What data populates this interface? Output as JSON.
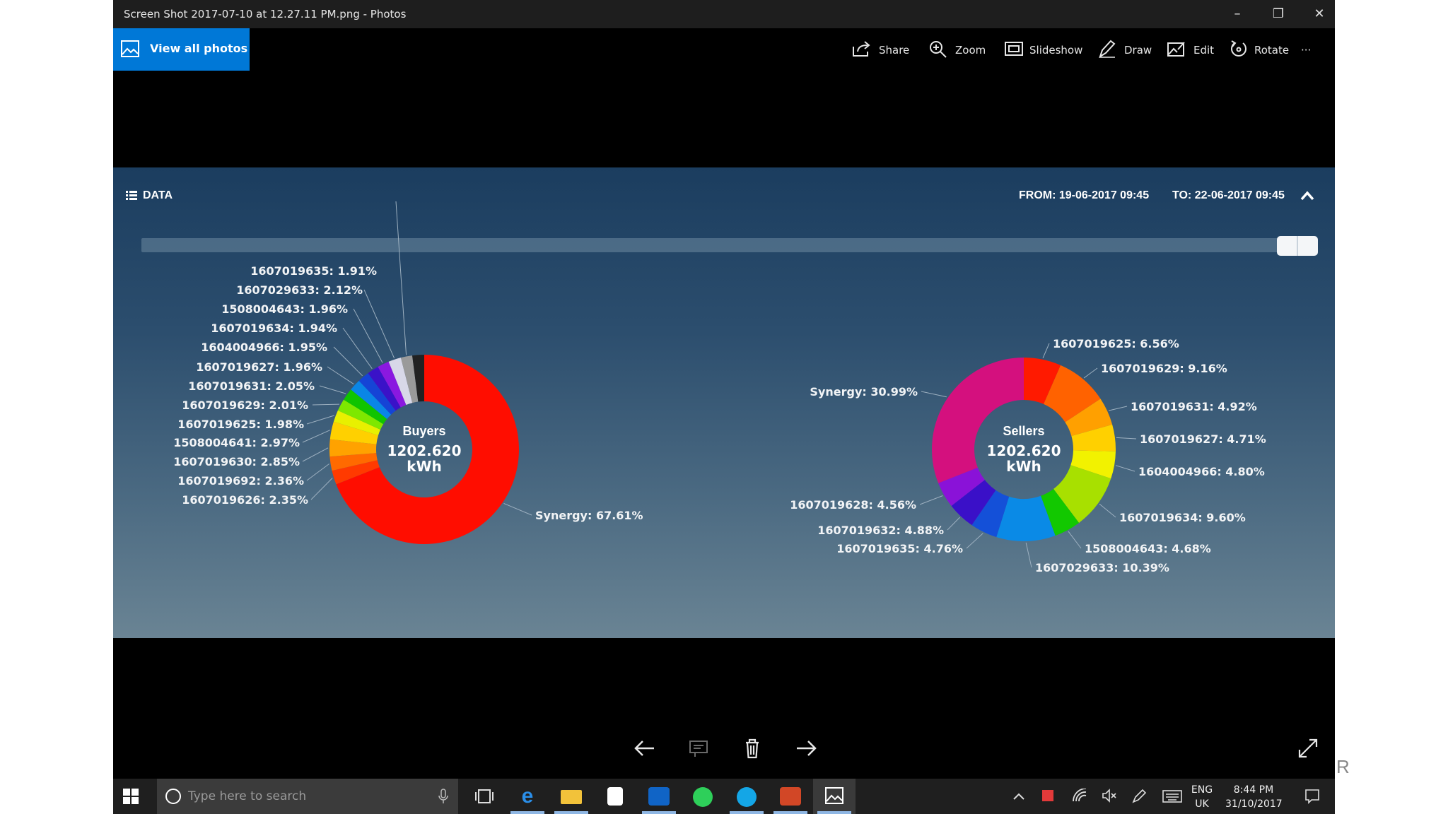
{
  "window": {
    "title": "Screen Shot 2017-07-10 at 12.27.11 PM.png - Photos",
    "minimize_glyph": "–",
    "restore_glyph": "❐",
    "close_glyph": "✕"
  },
  "toolbar": {
    "view_all": "View all photos",
    "share": "Share",
    "zoom": "Zoom",
    "slideshow": "Slideshow",
    "draw": "Draw",
    "edit": "Edit",
    "rotate": "Rotate",
    "more": "···"
  },
  "panel": {
    "header": "DATA",
    "from": "FROM: 19-06-2017 09:45",
    "to": "TO: 22-06-2017 09:45"
  },
  "chart_data": [
    {
      "type": "pie",
      "donut": true,
      "center_title": "Buyers",
      "center_value": "1202.620",
      "center_unit": "kWh",
      "slices": [
        {
          "label": "Synergy",
          "value": 67.61,
          "text": "Synergy: 67.61%",
          "color": "#ff0d00"
        },
        {
          "label": "1607019626",
          "value": 2.35,
          "text": "1607019626: 2.35%",
          "color": "#ff3a00"
        },
        {
          "label": "1607019692",
          "value": 2.36,
          "text": "1607019692: 2.36%",
          "color": "#ff6a00"
        },
        {
          "label": "1607019630",
          "value": 2.85,
          "text": "1607019630: 2.85%",
          "color": "#ffa200"
        },
        {
          "label": "1508004641",
          "value": 2.97,
          "text": "1508004641: 2.97%",
          "color": "#ffd000"
        },
        {
          "label": "1607019625",
          "value": 1.98,
          "text": "1607019625: 1.98%",
          "color": "#e8f000"
        },
        {
          "label": "1607019629",
          "value": 2.01,
          "text": "1607019629: 2.01%",
          "color": "#7ee800"
        },
        {
          "label": "1607019631",
          "value": 2.05,
          "text": "1607019631: 2.05%",
          "color": "#10c400"
        },
        {
          "label": "1607019627",
          "value": 1.96,
          "text": "1607019627: 1.96%",
          "color": "#0a86e6"
        },
        {
          "label": "1604004966",
          "value": 1.95,
          "text": "1604004966: 1.95%",
          "color": "#1544d6"
        },
        {
          "label": "1607019634",
          "value": 1.94,
          "text": "1607019634: 1.94%",
          "color": "#3a12c8"
        },
        {
          "label": "1508004643",
          "value": 1.96,
          "text": "1508004643: 1.96%",
          "color": "#8a18e0"
        },
        {
          "label": "1607029633",
          "value": 2.12,
          "text": "1607029633: 2.12%",
          "color": "#d8d8e8"
        },
        {
          "label": "1607019635",
          "value": 1.91,
          "text": "1607019635: 1.91%",
          "color": "#9a9a9a"
        },
        {
          "label": "",
          "value": 1.98,
          "text": "",
          "color": "#222222"
        }
      ]
    },
    {
      "type": "pie",
      "donut": true,
      "center_title": "Sellers",
      "center_value": "1202.620",
      "center_unit": "kWh",
      "slices": [
        {
          "label": "1607019625",
          "value": 6.56,
          "text": "1607019625: 6.56%",
          "color": "#ff1a00"
        },
        {
          "label": "1607019629",
          "value": 9.16,
          "text": "1607019629: 9.16%",
          "color": "#ff6200"
        },
        {
          "label": "1607019631",
          "value": 4.92,
          "text": "1607019631: 4.92%",
          "color": "#ffa000"
        },
        {
          "label": "1607019627",
          "value": 4.71,
          "text": "1607019627: 4.71%",
          "color": "#ffd000"
        },
        {
          "label": "1604004966",
          "value": 4.8,
          "text": "1604004966: 4.80%",
          "color": "#f2f200"
        },
        {
          "label": "1607019634",
          "value": 9.6,
          "text": "1607019634: 9.60%",
          "color": "#a8e000"
        },
        {
          "label": "1508004643",
          "value": 4.68,
          "text": "1508004643: 4.68%",
          "color": "#12c800"
        },
        {
          "label": "1607029633",
          "value": 10.39,
          "text": "1607029633: 10.39%",
          "color": "#0a8ae6"
        },
        {
          "label": "1607019635",
          "value": 4.76,
          "text": "1607019635: 4.76%",
          "color": "#1450d8"
        },
        {
          "label": "1607019632",
          "value": 4.88,
          "text": "1607019632: 4.88%",
          "color": "#3a10c8"
        },
        {
          "label": "1607019628",
          "value": 4.56,
          "text": "1607019628: 4.56%",
          "color": "#8a12d8"
        },
        {
          "label": "Synergy",
          "value": 30.99,
          "text": "Synergy: 30.99%",
          "color": "#d4107e"
        }
      ]
    }
  ],
  "taskbar": {
    "search_placeholder": "Type here to search",
    "lang_top": "ENG",
    "lang_bottom": "UK",
    "time": "8:44 PM",
    "date": "31/10/2017"
  },
  "outside_text": "R"
}
